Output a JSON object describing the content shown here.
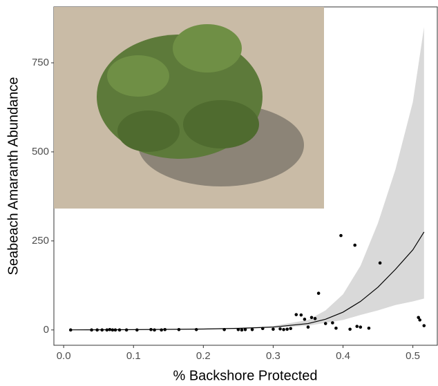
{
  "chart_data": {
    "type": "scatter",
    "x_label": "% Backshore Protected",
    "y_label": "Seabeach Amaranth Abundance",
    "xlim": [
      -0.014,
      0.536
    ],
    "ylim": [
      -43,
      907
    ],
    "xticks": [
      {
        "value": 0.0,
        "label": "0.0"
      },
      {
        "value": 0.1,
        "label": "0.1"
      },
      {
        "value": 0.2,
        "label": "0.2"
      },
      {
        "value": 0.3,
        "label": "0.3"
      },
      {
        "value": 0.4,
        "label": "0.4"
      },
      {
        "value": 0.5,
        "label": "0.5"
      }
    ],
    "yticks": [
      0,
      250,
      500,
      750
    ],
    "point_color": "#000000",
    "line_color": "#000000",
    "band_color": "#d9d9d9",
    "points": {
      "x": [
        0.01,
        0.04,
        0.048,
        0.055,
        0.062,
        0.066,
        0.07,
        0.074,
        0.08,
        0.09,
        0.105,
        0.125,
        0.13,
        0.14,
        0.145,
        0.165,
        0.19,
        0.23,
        0.25,
        0.255,
        0.26,
        0.27,
        0.285,
        0.3,
        0.31,
        0.315,
        0.32,
        0.325,
        0.333,
        0.34,
        0.345,
        0.35,
        0.355,
        0.36,
        0.365,
        0.375,
        0.385,
        0.39,
        0.397,
        0.41,
        0.417,
        0.42,
        0.425,
        0.437,
        0.453,
        0.508,
        0.51,
        0.516
      ],
      "values": [
        0,
        0,
        0,
        0,
        0,
        1,
        0,
        0,
        0,
        0,
        0,
        1,
        0,
        0,
        1,
        1,
        1,
        1,
        1,
        0,
        1,
        1,
        4,
        2,
        3,
        1,
        2,
        4,
        43,
        42,
        30,
        8,
        35,
        32,
        103,
        18,
        20,
        5,
        265,
        2,
        238,
        10,
        8,
        5,
        188,
        35,
        28,
        12
      ]
    },
    "fit": {
      "x": [
        0.01,
        0.1,
        0.2,
        0.25,
        0.3,
        0.35,
        0.375,
        0.4,
        0.425,
        0.45,
        0.475,
        0.5,
        0.516
      ],
      "values": [
        0.3,
        0.8,
        2.5,
        4.5,
        8,
        18,
        30,
        50,
        80,
        120,
        170,
        225,
        275
      ],
      "lower": [
        0.1,
        0.4,
        1.5,
        3,
        6,
        12,
        20,
        28,
        42,
        55,
        70,
        80,
        88
      ],
      "upper": [
        0.6,
        1.5,
        3.5,
        6,
        11,
        28,
        55,
        100,
        180,
        300,
        450,
        640,
        850
      ]
    }
  }
}
